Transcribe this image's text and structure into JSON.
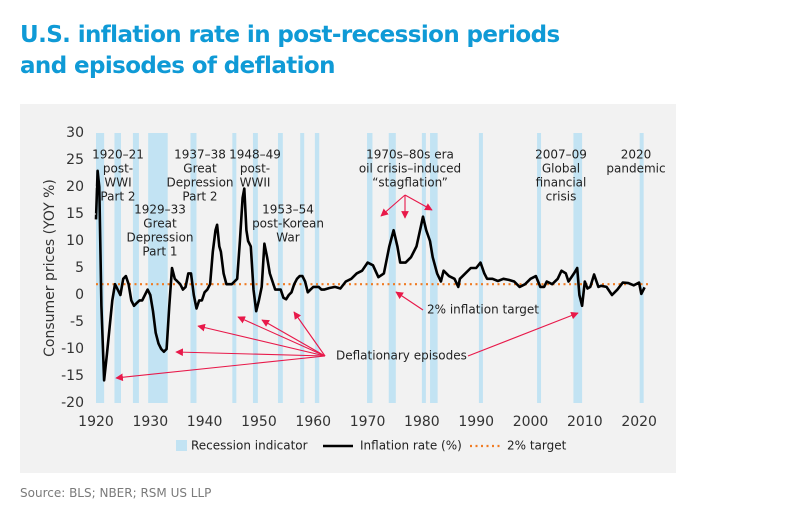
{
  "chart_data": {
    "type": "line",
    "title": "U.S. inflation rate in post-recession periods and episodes of deflation",
    "ylabel": "Consumer prices (YOY %)",
    "source": "Source: BLS; NBER; RSM US LLP",
    "xlim": [
      1920,
      2022
    ],
    "xticks": [
      1920,
      1930,
      1940,
      1950,
      1960,
      1970,
      1980,
      1990,
      2000,
      2010,
      2020
    ],
    "ylim": [
      -20,
      30
    ],
    "yticks": [
      -20,
      -15,
      -10,
      -5,
      0,
      5,
      10,
      15,
      20,
      25,
      30
    ],
    "x": [
      1920.0,
      1920.3,
      1920.6,
      1921.0,
      1921.5,
      1922.0,
      1922.5,
      1923.0,
      1923.5,
      1924.0,
      1924.5,
      1925.0,
      1925.5,
      1926.0,
      1926.5,
      1927.0,
      1927.5,
      1928.0,
      1928.5,
      1929.0,
      1929.5,
      1930.0,
      1930.5,
      1931.0,
      1931.5,
      1932.0,
      1932.5,
      1933.0,
      1933.5,
      1934.0,
      1934.5,
      1935.0,
      1935.5,
      1936.0,
      1936.5,
      1937.0,
      1937.5,
      1938.0,
      1938.5,
      1939.0,
      1939.5,
      1940.0,
      1940.5,
      1941.0,
      1941.5,
      1942.0,
      1942.3,
      1942.7,
      1943.0,
      1943.5,
      1944.0,
      1944.5,
      1945.0,
      1945.5,
      1946.0,
      1946.5,
      1947.0,
      1947.3,
      1947.7,
      1948.0,
      1948.5,
      1949.0,
      1949.5,
      1950.0,
      1950.5,
      1951.0,
      1951.5,
      1952.0,
      1952.5,
      1953.0,
      1953.5,
      1954.0,
      1954.5,
      1955.0,
      1955.5,
      1956.0,
      1956.5,
      1957.0,
      1957.5,
      1958.0,
      1958.5,
      1959.0,
      1959.5,
      1960.0,
      1960.5,
      1961.0,
      1961.5,
      1962.0,
      1963.0,
      1964.0,
      1965.0,
      1966.0,
      1967.0,
      1968.0,
      1969.0,
      1970.0,
      1971.0,
      1972.0,
      1973.0,
      1974.0,
      1974.8,
      1975.5,
      1976.0,
      1977.0,
      1978.0,
      1979.0,
      1980.2,
      1980.8,
      1981.5,
      1982.0,
      1982.8,
      1983.5,
      1984.0,
      1985.0,
      1986.0,
      1986.7,
      1987.0,
      1988.0,
      1989.0,
      1990.0,
      1990.8,
      1991.5,
      1992.0,
      1993.0,
      1994.0,
      1995.0,
      1996.0,
      1997.0,
      1998.0,
      1999.0,
      2000.0,
      2001.0,
      2001.8,
      2002.5,
      2003.0,
      2004.0,
      2005.0,
      2005.7,
      2006.5,
      2007.0,
      2008.0,
      2008.6,
      2009.0,
      2009.5,
      2010.0,
      2010.5,
      2011.0,
      2011.7,
      2012.5,
      2013.0,
      2014.0,
      2015.0,
      2016.0,
      2017.0,
      2018.0,
      2019.0,
      2020.0,
      2020.4,
      2021.0
    ],
    "series": [
      {
        "name": "Inflation rate (%)",
        "color": "#000000",
        "values": [
          14,
          23,
          20,
          -2,
          -15.8,
          -11,
          -6,
          -1,
          2,
          1,
          0,
          3,
          3.5,
          2,
          -1,
          -2,
          -1.5,
          -1,
          -1,
          0,
          1,
          0,
          -3,
          -7,
          -9,
          -10,
          -10.5,
          -10,
          -2,
          5,
          3,
          2.5,
          2,
          1,
          1.5,
          4,
          4,
          0,
          -2.5,
          -1,
          -1,
          0.5,
          1,
          2,
          8,
          12,
          13,
          9,
          8,
          4,
          2,
          2,
          2,
          2.5,
          3,
          10,
          18,
          19.7,
          12,
          10,
          9,
          1,
          -3,
          -1,
          1.5,
          9.5,
          7,
          4,
          2.5,
          1,
          1,
          1,
          -0.5,
          -0.8,
          0,
          0.5,
          2,
          3,
          3.5,
          3.5,
          2.5,
          0.5,
          1,
          1.5,
          1.5,
          1.5,
          1,
          1,
          1.3,
          1.5,
          1.2,
          2.5,
          3,
          4,
          4.5,
          6,
          5.5,
          3.3,
          4,
          9,
          12,
          9,
          6,
          6,
          7,
          9,
          14.5,
          12,
          10,
          7,
          4,
          2.5,
          4.5,
          3.5,
          3,
          1.5,
          3,
          4,
          5,
          5,
          6,
          4,
          3,
          3,
          2.6,
          3,
          2.8,
          2.5,
          1.5,
          2,
          3,
          3.5,
          1.5,
          1.5,
          2.5,
          2,
          3,
          4.5,
          4,
          2.5,
          4,
          5,
          0,
          -2,
          2.5,
          1.2,
          1.5,
          3.8,
          1.5,
          1.7,
          1.5,
          0,
          1,
          2.3,
          2.2,
          1.8,
          2.3,
          0.2,
          1.4
        ]
      }
    ],
    "recessions": {
      "name": "Recession indicator",
      "color": "#c2e3f3",
      "periods": [
        [
          1920.0,
          1921.5
        ],
        [
          1923.4,
          1924.6
        ],
        [
          1926.8,
          1927.9
        ],
        [
          1929.6,
          1933.2
        ],
        [
          1937.4,
          1938.5
        ],
        [
          1945.1,
          1945.8
        ],
        [
          1948.9,
          1949.8
        ],
        [
          1953.5,
          1954.4
        ],
        [
          1957.6,
          1958.3
        ],
        [
          1960.3,
          1961.1
        ],
        [
          1969.9,
          1970.9
        ],
        [
          1973.9,
          1975.2
        ],
        [
          1980.0,
          1980.5
        ],
        [
          1981.5,
          1982.9
        ],
        [
          1990.5,
          1991.2
        ],
        [
          2001.2,
          2001.9
        ],
        [
          2007.9,
          2009.5
        ],
        [
          2020.1,
          2020.3
        ]
      ]
    },
    "target": {
      "name": "2% target",
      "color": "#f07b22",
      "value": 2
    },
    "annotations": [
      {
        "lines": [
          "1920–21",
          "post-",
          "WWI",
          "Part 2"
        ]
      },
      {
        "lines": [
          "1929–33",
          "Great",
          "Depression",
          "Part 1"
        ]
      },
      {
        "lines": [
          "1937–38",
          "Great",
          "Depression",
          "Part 2"
        ]
      },
      {
        "lines": [
          "1948–49",
          "post-",
          "WWII"
        ]
      },
      {
        "lines": [
          "1953–54",
          "post-Korean",
          "War"
        ]
      },
      {
        "lines": [
          "1970s–80s era",
          "oil crisis–induced",
          "“stagflation”"
        ]
      },
      {
        "lines": [
          "2007–09",
          "Global",
          "financial",
          "crisis"
        ]
      },
      {
        "lines": [
          "2020",
          "pandemic"
        ]
      },
      {
        "lines": [
          "2% inflation target"
        ]
      },
      {
        "lines": [
          "Deflationary episodes"
        ]
      }
    ]
  }
}
